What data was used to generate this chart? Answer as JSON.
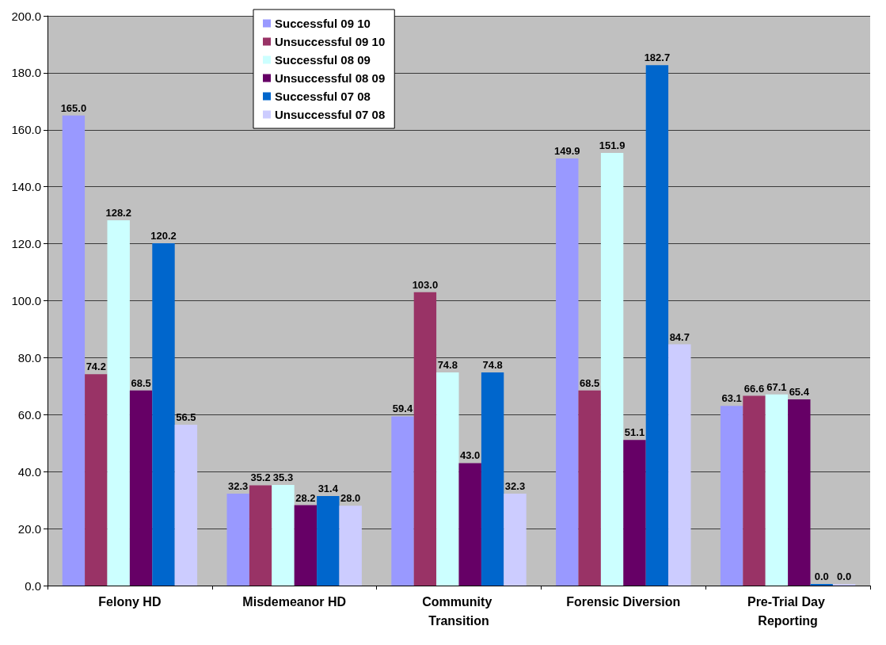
{
  "chart_data": {
    "type": "bar",
    "categories": [
      "Felony HD",
      "Misdemeanor HD",
      "Community Transition",
      "Forensic Diversion",
      "Pre-Trial Day Reporting"
    ],
    "series": [
      {
        "name": "Successful 09 10",
        "color": "#9999ff",
        "values": [
          165.0,
          32.3,
          59.4,
          149.9,
          63.1
        ],
        "value_labels": [
          "165.0",
          "32.3",
          "59.4",
          "149.9",
          "63.1"
        ]
      },
      {
        "name": "Unsuccessful 09 10",
        "color": "#993366",
        "values": [
          74.2,
          35.2,
          103.0,
          68.5,
          66.6
        ],
        "value_labels": [
          "74.2",
          "35.2",
          "103.0",
          "68.5",
          "66.6"
        ]
      },
      {
        "name": "Successful 08 09",
        "color": "#ccffff",
        "values": [
          128.2,
          35.3,
          74.8,
          151.9,
          67.1
        ],
        "value_labels": [
          "128.2",
          "35.3",
          "74.8",
          "151.9",
          "67.1"
        ]
      },
      {
        "name": "Unsuccessful 08 09",
        "color": "#660066",
        "values": [
          68.5,
          28.2,
          43.0,
          51.1,
          65.4
        ],
        "value_labels": [
          "68.5",
          "28.2",
          "43.0",
          "51.1",
          "65.4"
        ]
      },
      {
        "name": "Successful 07 08",
        "color": "#0066cc",
        "values": [
          120.2,
          31.4,
          74.8,
          182.7,
          0.0
        ],
        "value_labels": [
          "120.2",
          "31.4",
          "74.8",
          "182.7",
          "0.0"
        ]
      },
      {
        "name": "Unsuccessful 07 08",
        "color": "#ccccff",
        "values": [
          56.5,
          28.0,
          32.3,
          84.7,
          0.0
        ],
        "value_labels": [
          "56.5",
          "28.0",
          "32.3",
          "84.7",
          "0.0"
        ]
      }
    ],
    "ylim": [
      0,
      200
    ],
    "yticks": [
      {
        "value": 0,
        "label": "0.0"
      },
      {
        "value": 20,
        "label": "20.0"
      },
      {
        "value": 40,
        "label": "40.0"
      },
      {
        "value": 60,
        "label": "60.0"
      },
      {
        "value": 80,
        "label": "80.0"
      },
      {
        "value": 100,
        "label": "100.0"
      },
      {
        "value": 120,
        "label": "120.0"
      },
      {
        "value": 140,
        "label": "140.0"
      },
      {
        "value": 160,
        "label": "160.0"
      },
      {
        "value": 180,
        "label": "180.0"
      },
      {
        "value": 200,
        "label": "200.0"
      }
    ],
    "grid": "y",
    "legend": "top left"
  }
}
